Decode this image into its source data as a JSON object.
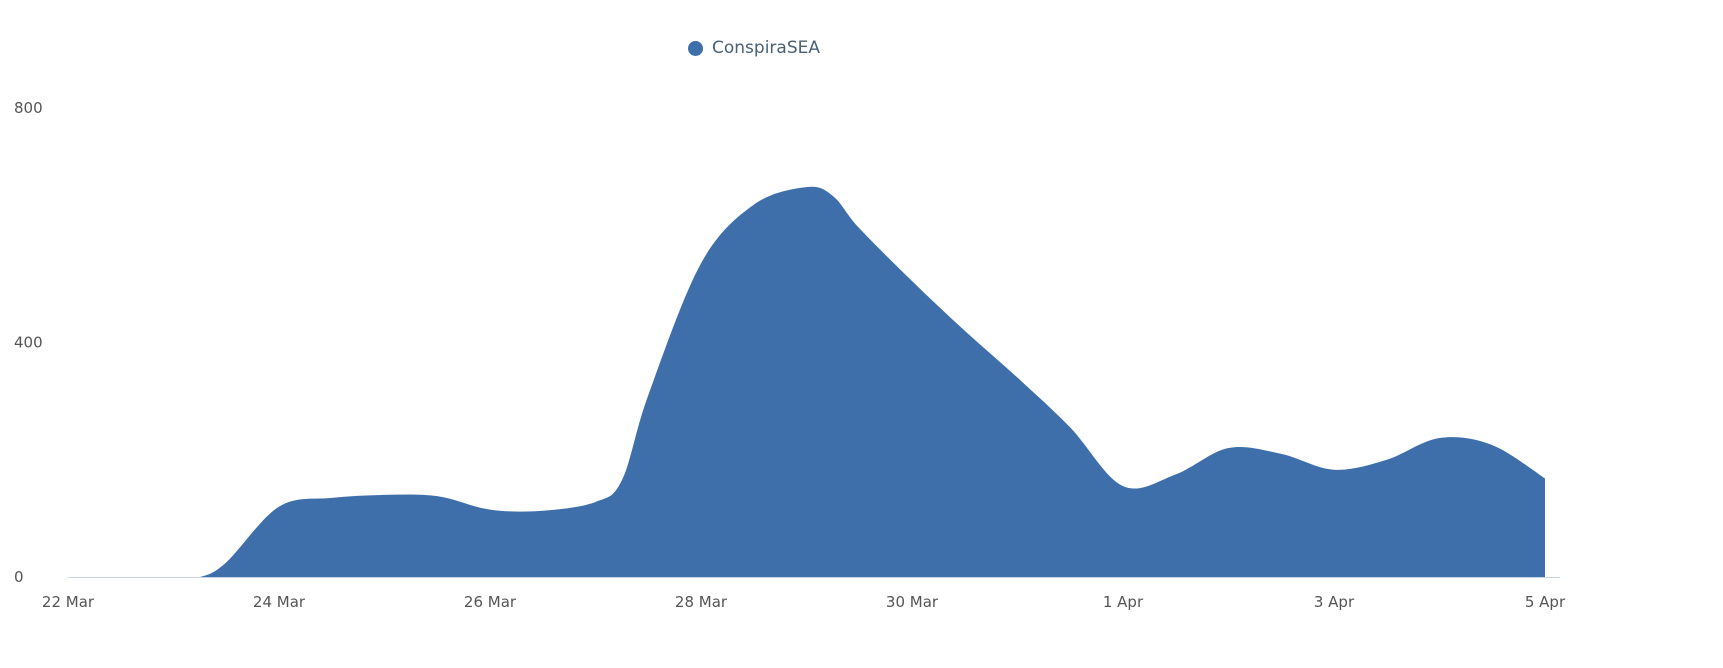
{
  "chart_data": {
    "type": "area",
    "title": "",
    "xlabel": "",
    "ylabel": "",
    "legend": {
      "position": "top",
      "entries": [
        "ConspiraSEA"
      ]
    },
    "grid": false,
    "ylim": [
      0,
      800
    ],
    "y_ticks": [
      "0",
      "400",
      "800"
    ],
    "x_ticks": [
      "22 Mar",
      "24 Mar",
      "26 Mar",
      "28 Mar",
      "30 Mar",
      "1 Apr",
      "3 Apr",
      "5 Apr"
    ],
    "x_range": [
      "22 Mar",
      "5 Apr"
    ],
    "colors": {
      "series": "#3f6faa",
      "axis": "#c8d4e6"
    },
    "series": [
      {
        "name": "ConspiraSEA",
        "points": [
          {
            "x": "22 Mar 00:00",
            "y": 0
          },
          {
            "x": "22 Mar 12:00",
            "y": 0
          },
          {
            "x": "23 Mar 00:00",
            "y": 0
          },
          {
            "x": "23 Mar 06:00",
            "y": 0
          },
          {
            "x": "23 Mar 12:00",
            "y": 25
          },
          {
            "x": "24 Mar 00:00",
            "y": 120
          },
          {
            "x": "24 Mar 12:00",
            "y": 135
          },
          {
            "x": "25 Mar 00:00",
            "y": 140
          },
          {
            "x": "25 Mar 12:00",
            "y": 138
          },
          {
            "x": "26 Mar 00:00",
            "y": 115
          },
          {
            "x": "26 Mar 12:00",
            "y": 113
          },
          {
            "x": "27 Mar 00:00",
            "y": 128
          },
          {
            "x": "27 Mar 06:00",
            "y": 165
          },
          {
            "x": "27 Mar 12:00",
            "y": 310
          },
          {
            "x": "28 Mar 00:00",
            "y": 535
          },
          {
            "x": "28 Mar 12:00",
            "y": 635
          },
          {
            "x": "29 Mar 00:00",
            "y": 665
          },
          {
            "x": "29 Mar 06:00",
            "y": 650
          },
          {
            "x": "29 Mar 12:00",
            "y": 595
          },
          {
            "x": "30 Mar 00:00",
            "y": 505
          },
          {
            "x": "30 Mar 12:00",
            "y": 420
          },
          {
            "x": "31 Mar 00:00",
            "y": 340
          },
          {
            "x": "31 Mar 12:00",
            "y": 255
          },
          {
            "x": "1 Apr 00:00",
            "y": 155
          },
          {
            "x": "1 Apr 12:00",
            "y": 175
          },
          {
            "x": "2 Apr 00:00",
            "y": 220
          },
          {
            "x": "2 Apr 12:00",
            "y": 210
          },
          {
            "x": "3 Apr 00:00",
            "y": 183
          },
          {
            "x": "3 Apr 12:00",
            "y": 200
          },
          {
            "x": "4 Apr 00:00",
            "y": 237
          },
          {
            "x": "4 Apr 12:00",
            "y": 225
          },
          {
            "x": "5 Apr 00:00",
            "y": 168
          }
        ]
      }
    ]
  }
}
